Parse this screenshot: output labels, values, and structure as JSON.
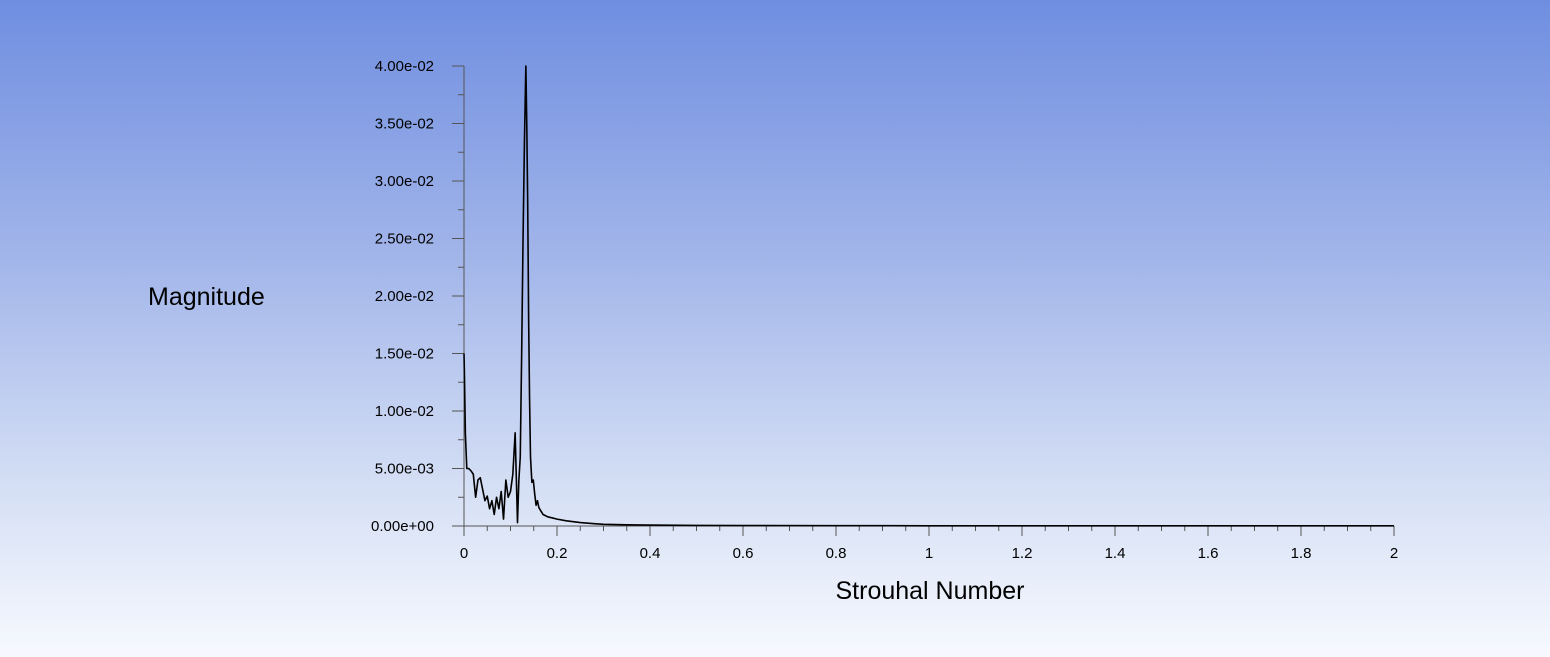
{
  "chart_data": {
    "type": "line",
    "title": "",
    "xlabel": "Strouhal Number",
    "ylabel": "Magnitude",
    "xlim": [
      0,
      2
    ],
    "ylim": [
      0,
      0.04
    ],
    "x_ticks": [
      {
        "value": 0,
        "label": "0"
      },
      {
        "value": 0.2,
        "label": "0.2"
      },
      {
        "value": 0.4,
        "label": "0.4"
      },
      {
        "value": 0.6,
        "label": "0.6"
      },
      {
        "value": 0.8,
        "label": "0.8"
      },
      {
        "value": 1.0,
        "label": "1"
      },
      {
        "value": 1.2,
        "label": "1.2"
      },
      {
        "value": 1.4,
        "label": "1.4"
      },
      {
        "value": 1.6,
        "label": "1.6"
      },
      {
        "value": 1.8,
        "label": "1.8"
      },
      {
        "value": 2.0,
        "label": "2"
      }
    ],
    "y_ticks": [
      {
        "value": 0,
        "label": "0.00e+00"
      },
      {
        "value": 0.005,
        "label": "5.00e-03"
      },
      {
        "value": 0.01,
        "label": "1.00e-02"
      },
      {
        "value": 0.015,
        "label": "1.50e-02"
      },
      {
        "value": 0.02,
        "label": "2.00e-02"
      },
      {
        "value": 0.025,
        "label": "2.50e-02"
      },
      {
        "value": 0.03,
        "label": "3.00e-02"
      },
      {
        "value": 0.035,
        "label": "3.50e-02"
      },
      {
        "value": 0.04,
        "label": "4.00e-02"
      }
    ],
    "grid": false,
    "line_color": "#000000",
    "series": [
      {
        "x": [
          0,
          0.001,
          0.003,
          0.006,
          0.01,
          0.015,
          0.02,
          0.025,
          0.03,
          0.035,
          0.04,
          0.045,
          0.05,
          0.055,
          0.06,
          0.065,
          0.07,
          0.075,
          0.08,
          0.085,
          0.09,
          0.095,
          0.1,
          0.105,
          0.11,
          0.115,
          0.118,
          0.121,
          0.124,
          0.127,
          0.13,
          0.133,
          0.135,
          0.137,
          0.139,
          0.141,
          0.143,
          0.146,
          0.149,
          0.152,
          0.155,
          0.158,
          0.161,
          0.164,
          0.167,
          0.17,
          0.175,
          0.18,
          0.19,
          0.2,
          0.22,
          0.25,
          0.28,
          0.3,
          0.35,
          0.4,
          0.5,
          0.6,
          0.8,
          1.0,
          1.2,
          1.4,
          1.6,
          1.8,
          2.0
        ],
        "y": [
          0.015,
          0.013,
          0.008,
          0.005,
          0.005,
          0.0048,
          0.0045,
          0.0025,
          0.004,
          0.0042,
          0.0032,
          0.0022,
          0.0026,
          0.0015,
          0.0022,
          0.001,
          0.0025,
          0.0015,
          0.003,
          0.0006,
          0.004,
          0.0025,
          0.003,
          0.0045,
          0.0081,
          0.0003,
          0.004,
          0.006,
          0.015,
          0.025,
          0.0335,
          0.04,
          0.035,
          0.028,
          0.018,
          0.011,
          0.006,
          0.0038,
          0.004,
          0.0028,
          0.0018,
          0.0022,
          0.0016,
          0.0014,
          0.0012,
          0.001,
          0.0009,
          0.0008,
          0.0007,
          0.0006,
          0.00045,
          0.0003,
          0.0002,
          0.00015,
          0.0001,
          8e-05,
          5e-05,
          4e-05,
          3e-05,
          2e-05,
          2e-05,
          2e-05,
          2e-05,
          2e-05,
          2e-05
        ]
      }
    ]
  }
}
